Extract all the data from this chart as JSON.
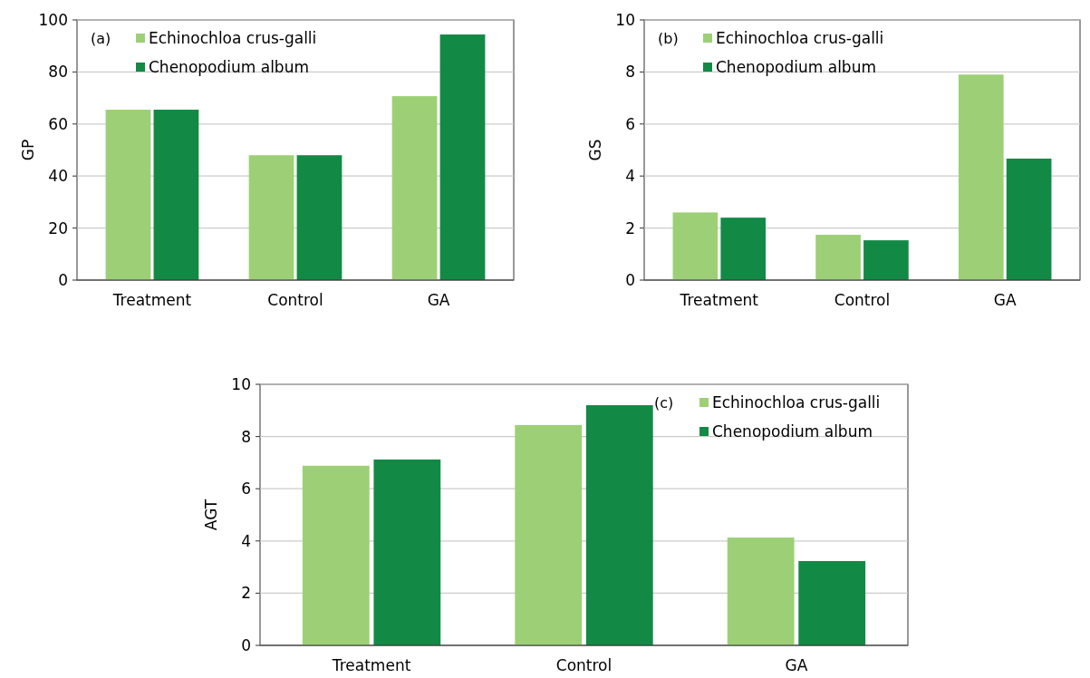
{
  "chart_data": [
    {
      "type": "bar",
      "categories": [
        "Treatment",
        "Control",
        "GA"
      ],
      "ylabel": "GP",
      "ylim": [
        0,
        100
      ],
      "yticks": [
        0,
        20,
        40,
        60,
        80,
        100
      ],
      "grid": "y",
      "legend": "top left",
      "annotations": [
        "(a)"
      ],
      "series": [
        {
          "name": "Echinochloa crus-galli",
          "color": "#9dd076",
          "values": [
            65.5,
            48,
            70.7
          ]
        },
        {
          "name": "Chenopodium album",
          "color": "#128a45",
          "values": [
            65.5,
            48,
            94.4
          ]
        }
      ]
    },
    {
      "type": "bar",
      "categories": [
        "Treatment",
        "Control",
        "GA"
      ],
      "ylabel": "GS",
      "ylim": [
        0,
        10
      ],
      "yticks": [
        0,
        2,
        4,
        6,
        8,
        10
      ],
      "grid": "y",
      "legend": "top left",
      "annotations": [
        "(b)"
      ],
      "series": [
        {
          "name": "Echinochloa crus-galli",
          "color": "#9dd076",
          "values": [
            2.6,
            1.74,
            7.9
          ]
        },
        {
          "name": "Chenopodium album",
          "color": "#128a45",
          "values": [
            2.4,
            1.53,
            4.67
          ]
        }
      ]
    },
    {
      "type": "bar",
      "categories": [
        "Treatment",
        "Control",
        "GA"
      ],
      "ylabel": "AGT",
      "ylim": [
        0,
        10
      ],
      "yticks": [
        0,
        2,
        4,
        6,
        8,
        10
      ],
      "grid": "y",
      "legend": "top right",
      "annotations": [
        "(c)"
      ],
      "series": [
        {
          "name": "Echinochloa crus-galli",
          "color": "#9dd076",
          "values": [
            6.88,
            8.44,
            4.13
          ]
        },
        {
          "name": "Chenopodium album",
          "color": "#128a45",
          "values": [
            7.12,
            9.2,
            3.23
          ]
        }
      ]
    }
  ]
}
